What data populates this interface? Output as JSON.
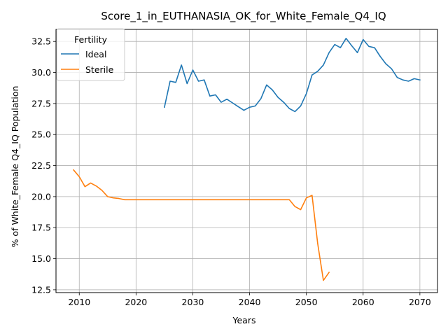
{
  "chart_data": {
    "type": "line",
    "title": "Score_1_in_EUTHANASIA_OK_for_White_Female_Q4_IQ",
    "xlabel": "Years",
    "ylabel": "% of White_Female Q4_IQ Population",
    "xlim": [
      2005.9,
      2073.1
    ],
    "ylim": [
      12.27,
      33.47
    ],
    "x_ticks": [
      "2010",
      "2020",
      "2030",
      "2040",
      "2050",
      "2060",
      "2070"
    ],
    "y_ticks": [
      "12.5",
      "15.0",
      "17.5",
      "20.0",
      "22.5",
      "25.0",
      "27.5",
      "30.0",
      "32.5"
    ],
    "grid": true,
    "legend": {
      "title": "Fertility",
      "placement": "top-left"
    },
    "series": [
      {
        "name": "Ideal",
        "color": "#1f77b4",
        "x": [
          2025,
          2026,
          2027,
          2028,
          2029,
          2030,
          2031,
          2032,
          2033,
          2034,
          2035,
          2036,
          2037,
          2038,
          2039,
          2040,
          2041,
          2042,
          2043,
          2044,
          2045,
          2046,
          2047,
          2048,
          2049,
          2050,
          2051,
          2052,
          2053,
          2054,
          2055,
          2056,
          2057,
          2058,
          2059,
          2060,
          2061,
          2062,
          2063,
          2064,
          2065,
          2066,
          2067,
          2068,
          2069,
          2070
        ],
        "y": [
          27.2,
          29.3,
          29.2,
          30.6,
          29.1,
          30.2,
          29.3,
          29.4,
          28.1,
          28.2,
          27.6,
          27.85,
          27.55,
          27.25,
          26.95,
          27.2,
          27.3,
          27.9,
          29.0,
          28.6,
          28.0,
          27.6,
          27.1,
          26.85,
          27.3,
          28.3,
          29.8,
          30.1,
          30.6,
          31.6,
          32.25,
          32.0,
          32.75,
          32.15,
          31.6,
          32.65,
          32.1,
          32.0,
          31.3,
          30.7,
          30.3,
          29.6,
          29.4,
          29.3,
          29.5,
          29.4
        ]
      },
      {
        "name": "Sterile",
        "color": "#ff7f0e",
        "x": [
          2009,
          2010,
          2011,
          2012,
          2013,
          2014,
          2015,
          2016,
          2017,
          2018,
          2019,
          2020,
          2021,
          2022,
          2023,
          2024,
          2025,
          2026,
          2027,
          2028,
          2029,
          2030,
          2031,
          2032,
          2033,
          2034,
          2035,
          2036,
          2037,
          2038,
          2039,
          2040,
          2041,
          2042,
          2043,
          2044,
          2045,
          2046,
          2047,
          2048,
          2049,
          2050,
          2051,
          2052,
          2053,
          2054
        ],
        "y": [
          22.15,
          21.6,
          20.8,
          21.1,
          20.85,
          20.5,
          20.0,
          19.9,
          19.85,
          19.75,
          19.75,
          19.75,
          19.75,
          19.75,
          19.75,
          19.75,
          19.75,
          19.75,
          19.75,
          19.75,
          19.75,
          19.75,
          19.75,
          19.75,
          19.75,
          19.75,
          19.75,
          19.75,
          19.75,
          19.75,
          19.75,
          19.75,
          19.75,
          19.75,
          19.75,
          19.75,
          19.75,
          19.75,
          19.75,
          19.2,
          18.95,
          19.9,
          20.1,
          16.2,
          13.25,
          13.9
        ]
      }
    ]
  }
}
